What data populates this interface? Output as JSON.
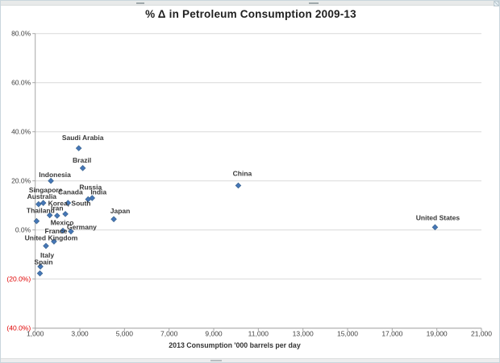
{
  "chart_data": {
    "type": "scatter",
    "title": "% Δ in Petroleum Consumption 2009-13",
    "xlabel": "2013 Consumption '000 barrels per day",
    "ylabel": "",
    "xlim": [
      1000,
      21000
    ],
    "ylim": [
      -40,
      80
    ],
    "x_ticks": [
      1000,
      3000,
      5000,
      7000,
      9000,
      11000,
      13000,
      15000,
      17000,
      19000,
      21000
    ],
    "x_tick_labels": [
      "1,000",
      "3,000",
      "5,000",
      "7,000",
      "9,000",
      "11,000",
      "13,000",
      "15,000",
      "17,000",
      "19,000",
      "21,000"
    ],
    "y_ticks": [
      80,
      60,
      40,
      20,
      0,
      -20,
      -40
    ],
    "y_tick_labels": [
      "80.0%",
      "60.0%",
      "40.0%",
      "20.0%",
      "0.0%",
      "(20.0%)",
      "(40.0%)"
    ],
    "grid": "horizontal",
    "legend": "none",
    "marker": {
      "shape": "diamond",
      "color": "#4677b8",
      "edge_color": "#3a648f"
    },
    "colors": {
      "gridline": "#d9d9d9",
      "axis": "#a6a6a6",
      "tick_label": "#3f3f3f",
      "negative_tick_label": "#e00000",
      "point_label": "#383838"
    },
    "points": [
      {
        "label": "Saudi Arabia",
        "x": 2950,
        "y": 33.3,
        "label_offset": [
          5,
          -13
        ]
      },
      {
        "label": "Brazil",
        "x": 3130,
        "y": 25.2,
        "label_offset": [
          -1,
          -10
        ]
      },
      {
        "label": "Indonesia",
        "x": 1700,
        "y": 20.0,
        "label_offset": [
          5,
          -7.5
        ]
      },
      {
        "label": "China",
        "x": 10100,
        "y": 18.1,
        "label_offset": [
          5,
          -15
        ]
      },
      {
        "label": "India",
        "x": 3550,
        "y": 13.0,
        "label_offset": [
          8,
          -7.5
        ]
      },
      {
        "label": "Russia",
        "x": 3370,
        "y": 12.5,
        "label_offset": [
          3,
          -15
        ]
      },
      {
        "label": "Singapore",
        "x": 1360,
        "y": 11.0,
        "label_offset": [
          3,
          -16
        ]
      },
      {
        "label": "Canada",
        "x": 2470,
        "y": 11.0,
        "label_offset": [
          3,
          -13.5
        ]
      },
      {
        "label": "Australia",
        "x": 1150,
        "y": 10.5,
        "label_offset": [
          4,
          -9.5
        ]
      },
      {
        "label": "Korea, South",
        "x": 2350,
        "y": 6.5,
        "label_offset": [
          5,
          -13.5
        ]
      },
      {
        "label": "Iran",
        "x": 1980,
        "y": 5.8,
        "label_offset": [
          0,
          -9.5
        ]
      },
      {
        "label": "",
        "x": 1650,
        "y": 6.0,
        "label_offset": [
          0,
          0
        ]
      },
      {
        "label": "Japan",
        "x": 4520,
        "y": 4.4,
        "label_offset": [
          8,
          -10.5
        ]
      },
      {
        "label": "Thailand",
        "x": 1060,
        "y": 3.6,
        "label_offset": [
          5,
          -13
        ]
      },
      {
        "label": "United States",
        "x": 18920,
        "y": 1.1,
        "label_offset": [
          3.5,
          -12
        ]
      },
      {
        "label": "Mexico",
        "x": 2240,
        "y": -0.3,
        "label_offset": [
          -1,
          -10
        ]
      },
      {
        "label": "Germany",
        "x": 2600,
        "y": -0.6,
        "label_offset": [
          13.5,
          -5.5
        ]
      },
      {
        "label": "France",
        "x": 1840,
        "y": -4.7,
        "label_offset": [
          2.5,
          -13
        ]
      },
      {
        "label": "United Kingdom",
        "x": 1480,
        "y": -6.5,
        "label_offset": [
          6.5,
          -10
        ]
      },
      {
        "label": "Italy",
        "x": 1230,
        "y": -14.9,
        "label_offset": [
          8.5,
          -14
        ]
      },
      {
        "label": "Spain",
        "x": 1210,
        "y": -17.7,
        "label_offset": [
          4.5,
          -14
        ]
      }
    ]
  }
}
